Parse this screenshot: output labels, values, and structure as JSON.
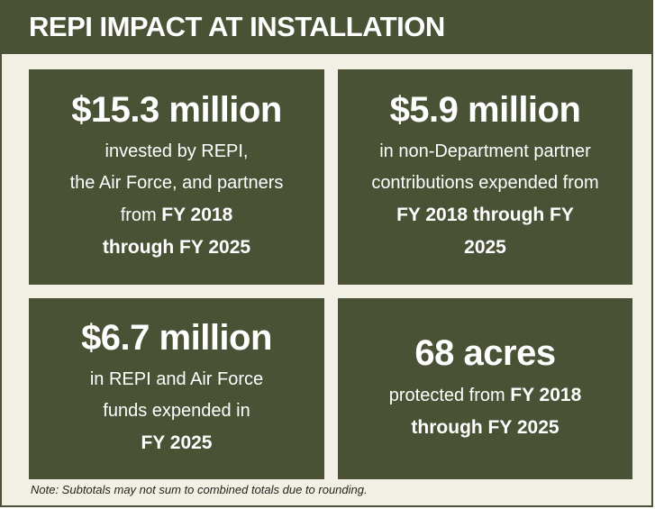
{
  "header": {
    "title": "REPI IMPACT AT INSTALLATION"
  },
  "cards": [
    {
      "headline": "$15.3 million",
      "lines": [
        [
          {
            "text": "invested by REPI,",
            "bold": false
          }
        ],
        [
          {
            "text": "the Air Force, and partners",
            "bold": false
          }
        ],
        [
          {
            "text": "from ",
            "bold": false
          },
          {
            "text": "FY 2018",
            "bold": true
          }
        ],
        [
          {
            "text": "through FY 2025",
            "bold": true
          }
        ]
      ]
    },
    {
      "headline": "$5.9 million",
      "lines": [
        [
          {
            "text": "in non-Department partner",
            "bold": false
          }
        ],
        [
          {
            "text": "contributions expended from",
            "bold": false
          }
        ],
        [
          {
            "text": "FY 2018 through FY",
            "bold": true
          }
        ],
        [
          {
            "text": "2025",
            "bold": true
          }
        ]
      ]
    },
    {
      "headline": "$6.7 million",
      "lines": [
        [
          {
            "text": "in REPI and Air Force",
            "bold": false
          }
        ],
        [
          {
            "text": "funds expended in",
            "bold": false
          }
        ],
        [
          {
            "text": "FY 2025",
            "bold": true
          }
        ]
      ]
    },
    {
      "headline": "68 acres",
      "lines": [
        [
          {
            "text": "protected from ",
            "bold": false
          },
          {
            "text": "FY 2018",
            "bold": true
          }
        ],
        [
          {
            "text": "through FY 2025",
            "bold": true
          }
        ]
      ]
    }
  ],
  "note": "Note: Subtotals may not sum to combined totals due to rounding."
}
